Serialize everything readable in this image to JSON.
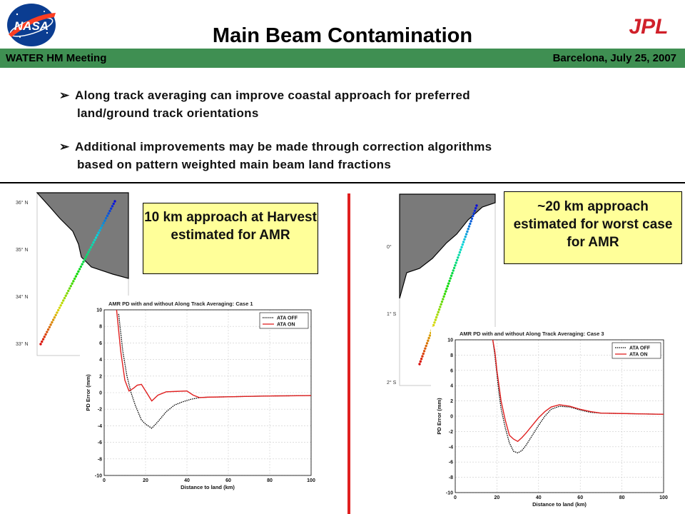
{
  "header": {
    "title": "Main Beam Contamination",
    "meeting": "WATER HM Meeting",
    "place_date": "Barcelona, July 25, 2007",
    "nasa_logo_text": "NASA",
    "jpl_logo_text": "JPL",
    "bar_color": "#3f8f52"
  },
  "bullets": [
    {
      "line1": "Along track averaging can improve coastal approach for preferred",
      "line2": "land/ground track orientations"
    },
    {
      "line1": "Additional improvements may be made through correction algorithms",
      "line2": "based on pattern weighted main beam land fractions"
    }
  ],
  "callouts": {
    "left": "10 km approach at Harvest estimated for AMR",
    "right": "~20 km approach estimated for worst case for AMR"
  },
  "maps": {
    "left_lat_labels": [
      "36° N",
      "35° N",
      "34° N",
      "33° N"
    ],
    "right_lat_labels": [
      "0°",
      "1° S",
      "2° S"
    ]
  },
  "chart_data": [
    {
      "type": "line",
      "title": "AMR PD with and without Along Track Averaging: Case 1",
      "xlabel": "Distance to land (km)",
      "ylabel": "PD Error (mm)",
      "xlim": [
        0,
        100
      ],
      "ylim": [
        -10,
        10
      ],
      "xticks": [
        0,
        20,
        40,
        60,
        80,
        100
      ],
      "yticks": [
        10,
        8,
        6,
        4,
        2,
        0,
        -2,
        -4,
        -6,
        -8,
        -10
      ],
      "grid": true,
      "legend_position": "top-right",
      "series": [
        {
          "name": "ATA OFF",
          "color": "#000000",
          "style": "dotted",
          "x": [
            7,
            9,
            11,
            13,
            15,
            18,
            20,
            23,
            26,
            30,
            34,
            38,
            42,
            46,
            50,
            60,
            70,
            80,
            90,
            100
          ],
          "y": [
            9.5,
            5.0,
            2.0,
            0.0,
            -1.5,
            -3.3,
            -3.8,
            -4.3,
            -3.5,
            -2.3,
            -1.5,
            -1.1,
            -0.8,
            -0.6,
            -0.55,
            -0.5,
            -0.45,
            -0.4,
            -0.38,
            -0.35
          ]
        },
        {
          "name": "ATA ON",
          "color": "#e02020",
          "style": "solid",
          "x": [
            6,
            8,
            10,
            12,
            14,
            16,
            18,
            20,
            23,
            26,
            30,
            35,
            40,
            43,
            46,
            50,
            60,
            70,
            80,
            90,
            100
          ],
          "y": [
            10,
            5.0,
            1.5,
            0.2,
            0.5,
            0.9,
            1.0,
            0.2,
            -1.0,
            -0.3,
            0.1,
            0.15,
            0.2,
            -0.3,
            -0.6,
            -0.55,
            -0.5,
            -0.45,
            -0.4,
            -0.38,
            -0.35
          ]
        }
      ]
    },
    {
      "type": "line",
      "title": "AMR PD with and without Along Track Averaging: Case 3",
      "xlabel": "Distance to land (km)",
      "ylabel": "PD Error (mm)",
      "xlim": [
        0,
        100
      ],
      "ylim": [
        -10,
        10
      ],
      "xticks": [
        0,
        20,
        40,
        60,
        80,
        100
      ],
      "yticks": [
        10,
        8,
        6,
        4,
        2,
        0,
        -2,
        -4,
        -6,
        -8,
        -10
      ],
      "grid": true,
      "legend_position": "top-right",
      "series": [
        {
          "name": "ATA OFF",
          "color": "#000000",
          "style": "dotted",
          "x": [
            18,
            19,
            20,
            21,
            22,
            24,
            26,
            28,
            30,
            32,
            34,
            37,
            40,
            43,
            46,
            50,
            55,
            60,
            65,
            70,
            80,
            90,
            100
          ],
          "y": [
            10,
            8.0,
            5.5,
            3.0,
            1.0,
            -1.5,
            -3.5,
            -4.6,
            -4.8,
            -4.5,
            -3.8,
            -2.5,
            -1.2,
            0.0,
            0.9,
            1.3,
            1.2,
            0.8,
            0.5,
            0.4,
            0.35,
            0.3,
            0.25
          ]
        },
        {
          "name": "ATA ON",
          "color": "#e02020",
          "style": "solid",
          "x": [
            18,
            19,
            20,
            21,
            22,
            24,
            26,
            28,
            30,
            32,
            34,
            37,
            40,
            43,
            46,
            50,
            55,
            60,
            65,
            70,
            80,
            90,
            100
          ],
          "y": [
            10,
            8.5,
            6.0,
            4.0,
            2.0,
            -0.5,
            -2.5,
            -3.0,
            -3.3,
            -2.8,
            -2.2,
            -1.2,
            -0.2,
            0.6,
            1.2,
            1.5,
            1.3,
            0.9,
            0.6,
            0.4,
            0.35,
            0.3,
            0.25
          ]
        }
      ]
    }
  ]
}
